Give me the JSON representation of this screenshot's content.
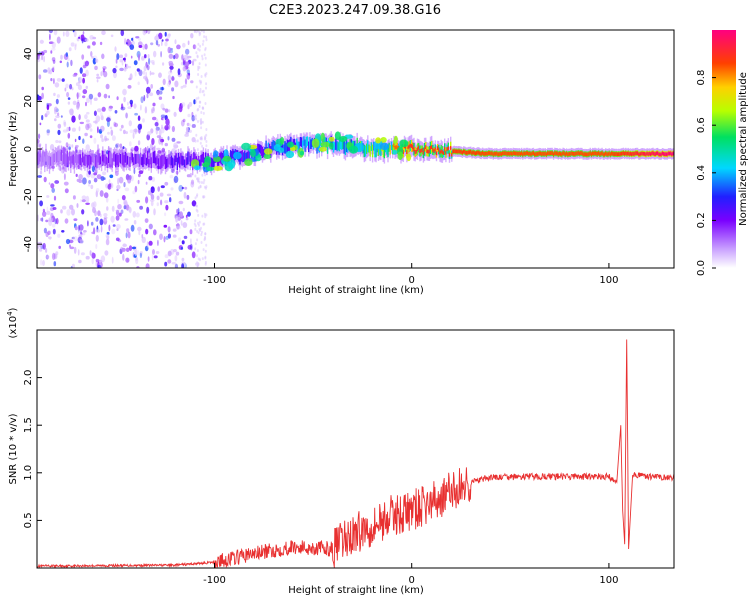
{
  "title": "C2E3.2023.247.09.38.G16",
  "chart_data": [
    {
      "type": "heatmap",
      "xlabel": "Height of straight line (km)",
      "ylabel": "Frequency (Hz)",
      "xlim": [
        -190,
        133
      ],
      "ylim": [
        -50,
        50
      ],
      "xticks": [
        -100,
        0,
        100
      ],
      "yticks": [
        -40,
        -20,
        0,
        20,
        40
      ],
      "colorbar": {
        "label": "Normalized spectral amplitude",
        "range": [
          0.0,
          1.0
        ],
        "ticks": [
          0.0,
          0.2,
          0.4,
          0.6,
          0.8
        ]
      },
      "features": {
        "noise_region_x": [
          -190,
          -110
        ],
        "signal_band": {
          "x": [
            -190,
            -100,
            -60,
            -40,
            -20,
            0,
            40,
            100,
            133
          ],
          "center_freq": [
            -4,
            -5,
            2,
            2,
            0,
            0,
            -2,
            -2,
            -2
          ],
          "amplitude": [
            0.15,
            0.3,
            0.45,
            0.5,
            0.7,
            0.85,
            0.8,
            0.8,
            0.95
          ]
        }
      }
    },
    {
      "type": "line",
      "xlabel": "Height of straight line (km)",
      "ylabel": "SNR (10 * v/v)",
      "y_multiplier": "(x10",
      "y_multiplier_exp": "4",
      "y_multiplier_close": ")",
      "xlim": [
        -190,
        133
      ],
      "ylim": [
        0,
        2.5
      ],
      "xticks": [
        -100,
        0,
        100
      ],
      "yticks": [
        0.5,
        1.0,
        1.5,
        2.0
      ],
      "series": [
        {
          "color": "#e83030",
          "trend": {
            "x": [
              -190,
              -120,
              -100,
              -80,
              -60,
              -40,
              -30,
              -20,
              -10,
              0,
              10,
              20,
              30,
              40,
              60,
              80,
              100,
              104,
              106,
              107,
              108,
              109,
              110,
              112,
              120,
              133
            ],
            "y": [
              0.02,
              0.03,
              0.06,
              0.15,
              0.22,
              0.2,
              0.35,
              0.45,
              0.55,
              0.6,
              0.68,
              0.8,
              0.9,
              0.95,
              0.96,
              0.96,
              0.96,
              0.9,
              1.5,
              0.6,
              0.25,
              2.4,
              0.2,
              0.98,
              0.96,
              0.95
            ]
          }
        }
      ]
    }
  ]
}
